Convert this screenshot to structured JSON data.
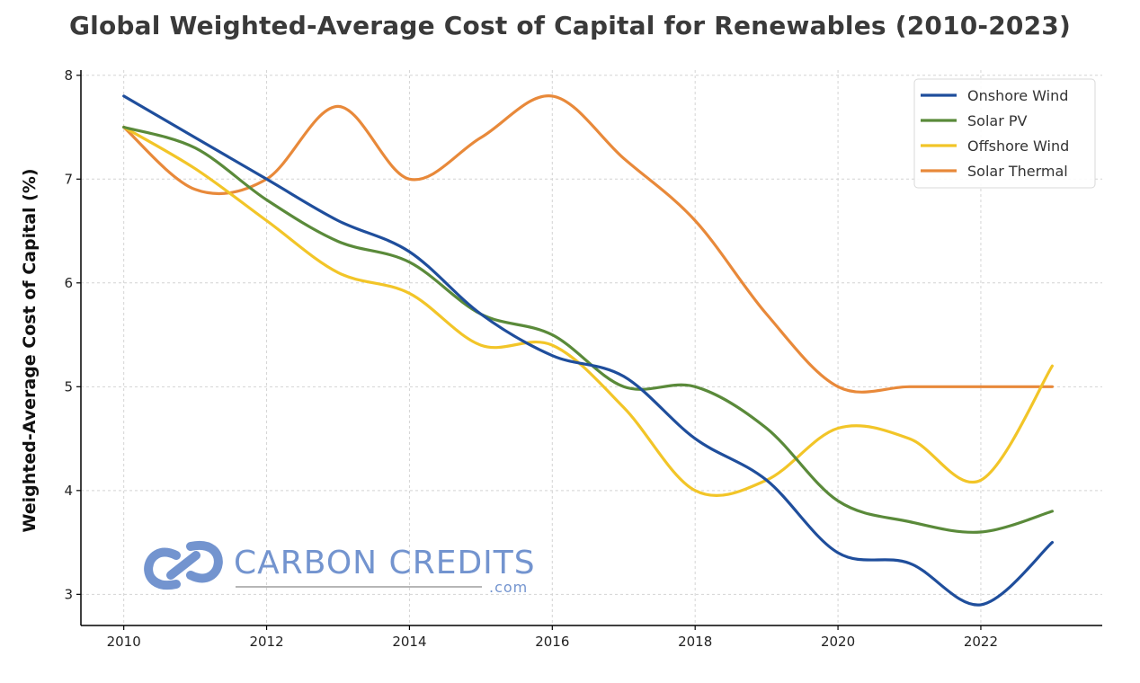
{
  "chart_data": {
    "type": "line",
    "title": "Global Weighted-Average Cost of Capital for Renewables (2010-2023)",
    "xlabel": "",
    "ylabel": "Weighted-Average Cost of Capital (%)",
    "x": [
      2010,
      2011,
      2012,
      2013,
      2014,
      2015,
      2016,
      2017,
      2018,
      2019,
      2020,
      2021,
      2022,
      2023
    ],
    "x_ticks": [
      2010,
      2012,
      2014,
      2016,
      2018,
      2020,
      2022
    ],
    "y_ticks": [
      3,
      4,
      5,
      6,
      7,
      8
    ],
    "xlim": [
      2009.4,
      2023.7
    ],
    "ylim": [
      2.7,
      8.05
    ],
    "grid": true,
    "legend_position": "top-right",
    "series": [
      {
        "name": "Onshore Wind",
        "color": "#1f4e9c",
        "values": [
          7.8,
          7.4,
          7.0,
          6.6,
          6.3,
          5.7,
          5.3,
          5.1,
          4.5,
          4.1,
          3.4,
          3.3,
          2.9,
          3.5
        ]
      },
      {
        "name": "Solar PV",
        "color": "#5a8a3a",
        "values": [
          7.5,
          7.3,
          6.8,
          6.4,
          6.2,
          5.7,
          5.5,
          5.0,
          5.0,
          4.6,
          3.9,
          3.7,
          3.6,
          3.8
        ]
      },
      {
        "name": "Offshore Wind",
        "color": "#f2c528",
        "values": [
          7.5,
          7.1,
          6.6,
          6.1,
          5.9,
          5.4,
          5.4,
          4.8,
          4.0,
          4.1,
          4.6,
          4.5,
          4.1,
          5.2
        ]
      },
      {
        "name": "Solar Thermal",
        "color": "#e8893a",
        "values": [
          7.5,
          6.9,
          7.0,
          7.7,
          7.0,
          7.4,
          7.8,
          7.2,
          6.6,
          5.7,
          5.0,
          5.0,
          5.0,
          5.0
        ]
      }
    ]
  },
  "watermark": {
    "brand": "CARBON CREDITS",
    "sub": ".com",
    "color": "#7394cf"
  }
}
